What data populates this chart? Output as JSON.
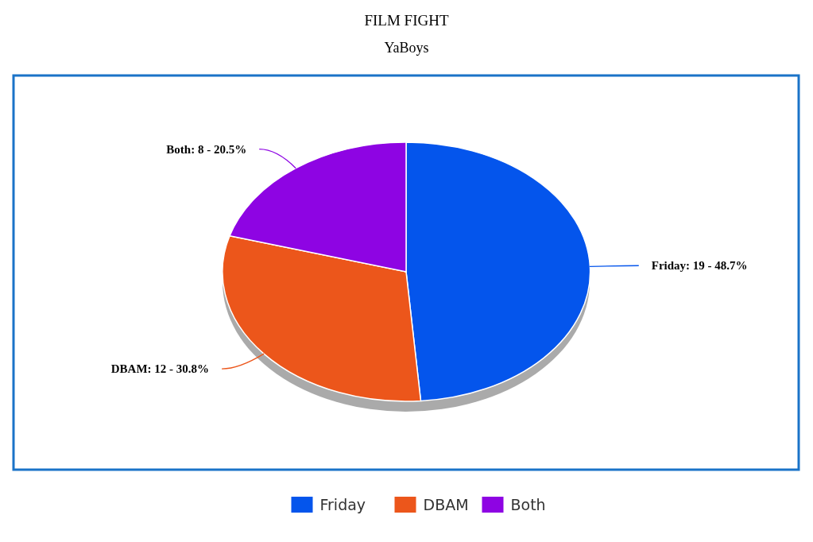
{
  "chart_data": {
    "type": "pie",
    "title": "FILM FIGHT",
    "subtitle": "YaBoys",
    "categories": [
      "Friday",
      "DBAM",
      "Both"
    ],
    "values": [
      19,
      12,
      8
    ],
    "colors": [
      "#0455ec",
      "#ec561b",
      "#8e04e3"
    ],
    "value_labels": [
      "Friday: 19 - 48.7%",
      "DBAM: 12 - 30.8%",
      "Both: 8 - 20.5%"
    ],
    "legend": "bottom"
  }
}
